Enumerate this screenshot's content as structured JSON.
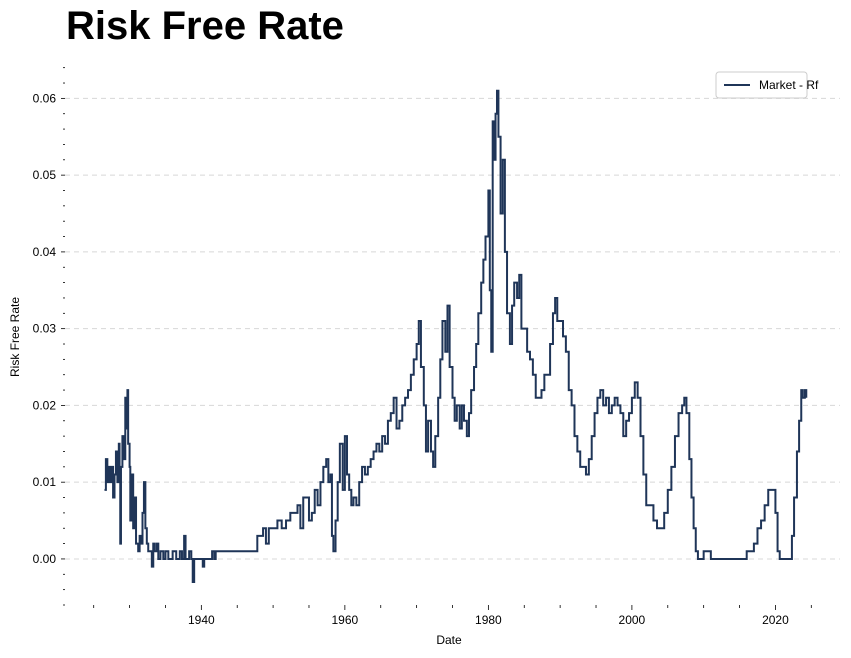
{
  "chart_data": {
    "type": "line",
    "title": "Risk Free Rate",
    "xlabel": "Date",
    "ylabel": "Risk Free Rate",
    "xlim": [
      1921,
      2029
    ],
    "ylim": [
      -0.006,
      0.065
    ],
    "x_ticks": [
      1940,
      1960,
      1980,
      2000,
      2020
    ],
    "y_ticks": [
      0.0,
      0.01,
      0.02,
      0.03,
      0.04,
      0.05,
      0.06
    ],
    "y_tick_labels": [
      "0.00",
      "0.01",
      "0.02",
      "0.03",
      "0.04",
      "0.05",
      "0.06"
    ],
    "grid": "horizontal dashed",
    "legend_position": "top-right",
    "series": [
      {
        "name": "Market - Rf",
        "color": "#1f3558",
        "points": [
          [
            1926.5,
            0.009
          ],
          [
            1926.7,
            0.013
          ],
          [
            1926.9,
            0.01
          ],
          [
            1927.1,
            0.012
          ],
          [
            1927.3,
            0.01
          ],
          [
            1927.5,
            0.012
          ],
          [
            1927.7,
            0.008
          ],
          [
            1927.9,
            0.011
          ],
          [
            1928.1,
            0.014
          ],
          [
            1928.3,
            0.01
          ],
          [
            1928.5,
            0.015
          ],
          [
            1928.6,
            0.012
          ],
          [
            1928.7,
            0.002
          ],
          [
            1928.8,
            0.012
          ],
          [
            1929.0,
            0.016
          ],
          [
            1929.2,
            0.013
          ],
          [
            1929.4,
            0.021
          ],
          [
            1929.5,
            0.017
          ],
          [
            1929.7,
            0.022
          ],
          [
            1929.8,
            0.015
          ],
          [
            1930.0,
            0.012
          ],
          [
            1930.1,
            0.005
          ],
          [
            1930.3,
            0.011
          ],
          [
            1930.5,
            0.004
          ],
          [
            1930.7,
            0.008
          ],
          [
            1930.9,
            0.002
          ],
          [
            1931.2,
            0.001
          ],
          [
            1931.4,
            0.003
          ],
          [
            1931.6,
            0.002
          ],
          [
            1931.8,
            0.006
          ],
          [
            1932.0,
            0.01
          ],
          [
            1932.2,
            0.004
          ],
          [
            1932.4,
            0.002
          ],
          [
            1932.6,
            0.001
          ],
          [
            1932.9,
            0.001
          ],
          [
            1933.1,
            -0.001
          ],
          [
            1933.3,
            0.002
          ],
          [
            1933.5,
            0.001
          ],
          [
            1933.8,
            0.002
          ],
          [
            1934.0,
            0.0
          ],
          [
            1934.3,
            0.001
          ],
          [
            1934.7,
            0.0
          ],
          [
            1935.0,
            0.001
          ],
          [
            1935.4,
            0.0
          ],
          [
            1936.0,
            0.001
          ],
          [
            1936.5,
            0.0
          ],
          [
            1937.0,
            0.001
          ],
          [
            1937.3,
            0.0
          ],
          [
            1937.6,
            0.003
          ],
          [
            1937.8,
            0.0
          ],
          [
            1938.3,
            0.001
          ],
          [
            1938.6,
            0.0
          ],
          [
            1938.8,
            -0.003
          ],
          [
            1939.0,
            0.0
          ],
          [
            1939.5,
            0.0
          ],
          [
            1940.0,
            0.0
          ],
          [
            1940.2,
            -0.001
          ],
          [
            1940.4,
            0.0
          ],
          [
            1941.0,
            0.0
          ],
          [
            1941.5,
            0.001
          ],
          [
            1941.8,
            0.0
          ],
          [
            1942.0,
            0.001
          ],
          [
            1944.0,
            0.001
          ],
          [
            1946.0,
            0.001
          ],
          [
            1947.5,
            0.001
          ],
          [
            1947.8,
            0.003
          ],
          [
            1948.2,
            0.003
          ],
          [
            1948.6,
            0.004
          ],
          [
            1949.0,
            0.002
          ],
          [
            1949.4,
            0.004
          ],
          [
            1950.0,
            0.004
          ],
          [
            1950.6,
            0.005
          ],
          [
            1951.2,
            0.004
          ],
          [
            1951.8,
            0.005
          ],
          [
            1952.4,
            0.006
          ],
          [
            1953.0,
            0.006
          ],
          [
            1953.4,
            0.007
          ],
          [
            1953.8,
            0.004
          ],
          [
            1954.2,
            0.008
          ],
          [
            1954.6,
            0.008
          ],
          [
            1955.0,
            0.005
          ],
          [
            1955.4,
            0.006
          ],
          [
            1955.8,
            0.009
          ],
          [
            1956.2,
            0.007
          ],
          [
            1956.6,
            0.01
          ],
          [
            1957.0,
            0.012
          ],
          [
            1957.4,
            0.013
          ],
          [
            1957.7,
            0.01
          ],
          [
            1958.0,
            0.011
          ],
          [
            1958.2,
            0.003
          ],
          [
            1958.4,
            0.001
          ],
          [
            1958.7,
            0.005
          ],
          [
            1959.0,
            0.01
          ],
          [
            1959.3,
            0.015
          ],
          [
            1959.7,
            0.009
          ],
          [
            1960.0,
            0.016
          ],
          [
            1960.3,
            0.011
          ],
          [
            1960.6,
            0.009
          ],
          [
            1960.9,
            0.007
          ],
          [
            1961.2,
            0.008
          ],
          [
            1961.6,
            0.007
          ],
          [
            1962.0,
            0.01
          ],
          [
            1962.4,
            0.012
          ],
          [
            1962.8,
            0.011
          ],
          [
            1963.2,
            0.012
          ],
          [
            1963.6,
            0.013
          ],
          [
            1964.0,
            0.014
          ],
          [
            1964.4,
            0.015
          ],
          [
            1964.8,
            0.014
          ],
          [
            1965.2,
            0.016
          ],
          [
            1965.6,
            0.015
          ],
          [
            1966.0,
            0.018
          ],
          [
            1966.4,
            0.019
          ],
          [
            1966.8,
            0.021
          ],
          [
            1967.2,
            0.017
          ],
          [
            1967.6,
            0.018
          ],
          [
            1968.0,
            0.02
          ],
          [
            1968.4,
            0.021
          ],
          [
            1968.8,
            0.022
          ],
          [
            1969.2,
            0.024
          ],
          [
            1969.6,
            0.026
          ],
          [
            1970.0,
            0.028
          ],
          [
            1970.3,
            0.031
          ],
          [
            1970.6,
            0.025
          ],
          [
            1971.0,
            0.02
          ],
          [
            1971.3,
            0.014
          ],
          [
            1971.6,
            0.018
          ],
          [
            1972.0,
            0.014
          ],
          [
            1972.3,
            0.012
          ],
          [
            1972.6,
            0.016
          ],
          [
            1973.0,
            0.021
          ],
          [
            1973.3,
            0.026
          ],
          [
            1973.6,
            0.031
          ],
          [
            1974.0,
            0.027
          ],
          [
            1974.3,
            0.033
          ],
          [
            1974.6,
            0.025
          ],
          [
            1975.0,
            0.021
          ],
          [
            1975.3,
            0.018
          ],
          [
            1975.6,
            0.02
          ],
          [
            1976.0,
            0.017
          ],
          [
            1976.3,
            0.02
          ],
          [
            1976.6,
            0.018
          ],
          [
            1977.0,
            0.016
          ],
          [
            1977.3,
            0.019
          ],
          [
            1977.6,
            0.022
          ],
          [
            1978.0,
            0.025
          ],
          [
            1978.3,
            0.028
          ],
          [
            1978.6,
            0.032
          ],
          [
            1979.0,
            0.036
          ],
          [
            1979.3,
            0.039
          ],
          [
            1979.6,
            0.042
          ],
          [
            1980.0,
            0.048
          ],
          [
            1980.2,
            0.035
          ],
          [
            1980.4,
            0.027
          ],
          [
            1980.6,
            0.057
          ],
          [
            1980.8,
            0.052
          ],
          [
            1981.0,
            0.058
          ],
          [
            1981.2,
            0.061
          ],
          [
            1981.4,
            0.055
          ],
          [
            1981.7,
            0.045
          ],
          [
            1982.0,
            0.052
          ],
          [
            1982.3,
            0.04
          ],
          [
            1982.6,
            0.032
          ],
          [
            1983.0,
            0.028
          ],
          [
            1983.3,
            0.033
          ],
          [
            1983.6,
            0.036
          ],
          [
            1984.0,
            0.034
          ],
          [
            1984.3,
            0.037
          ],
          [
            1984.6,
            0.03
          ],
          [
            1985.0,
            0.03
          ],
          [
            1985.4,
            0.027
          ],
          [
            1985.8,
            0.026
          ],
          [
            1986.2,
            0.024
          ],
          [
            1986.6,
            0.021
          ],
          [
            1987.0,
            0.021
          ],
          [
            1987.4,
            0.022
          ],
          [
            1987.8,
            0.024
          ],
          [
            1988.2,
            0.024
          ],
          [
            1988.6,
            0.028
          ],
          [
            1989.0,
            0.032
          ],
          [
            1989.3,
            0.034
          ],
          [
            1989.6,
            0.031
          ],
          [
            1990.0,
            0.031
          ],
          [
            1990.4,
            0.029
          ],
          [
            1990.8,
            0.027
          ],
          [
            1991.2,
            0.022
          ],
          [
            1991.6,
            0.02
          ],
          [
            1992.0,
            0.016
          ],
          [
            1992.4,
            0.014
          ],
          [
            1992.8,
            0.012
          ],
          [
            1993.2,
            0.012
          ],
          [
            1993.6,
            0.011
          ],
          [
            1994.0,
            0.013
          ],
          [
            1994.4,
            0.016
          ],
          [
            1994.8,
            0.019
          ],
          [
            1995.2,
            0.021
          ],
          [
            1995.6,
            0.022
          ],
          [
            1996.0,
            0.02
          ],
          [
            1996.4,
            0.021
          ],
          [
            1996.8,
            0.019
          ],
          [
            1997.2,
            0.02
          ],
          [
            1997.6,
            0.021
          ],
          [
            1998.0,
            0.02
          ],
          [
            1998.4,
            0.019
          ],
          [
            1998.8,
            0.016
          ],
          [
            1999.2,
            0.018
          ],
          [
            1999.6,
            0.019
          ],
          [
            2000.0,
            0.021
          ],
          [
            2000.4,
            0.023
          ],
          [
            2000.8,
            0.021
          ],
          [
            2001.2,
            0.016
          ],
          [
            2001.6,
            0.011
          ],
          [
            2002.0,
            0.007
          ],
          [
            2002.5,
            0.007
          ],
          [
            2003.0,
            0.005
          ],
          [
            2003.5,
            0.004
          ],
          [
            2004.0,
            0.004
          ],
          [
            2004.5,
            0.006
          ],
          [
            2005.0,
            0.009
          ],
          [
            2005.5,
            0.012
          ],
          [
            2006.0,
            0.016
          ],
          [
            2006.5,
            0.019
          ],
          [
            2007.0,
            0.02
          ],
          [
            2007.3,
            0.021
          ],
          [
            2007.6,
            0.019
          ],
          [
            2008.0,
            0.013
          ],
          [
            2008.3,
            0.008
          ],
          [
            2008.6,
            0.004
          ],
          [
            2008.9,
            0.001
          ],
          [
            2009.2,
            0.0
          ],
          [
            2010.0,
            0.001
          ],
          [
            2011.0,
            0.0
          ],
          [
            2012.0,
            0.0
          ],
          [
            2013.0,
            0.0
          ],
          [
            2014.0,
            0.0
          ],
          [
            2015.0,
            0.0
          ],
          [
            2016.0,
            0.001
          ],
          [
            2016.5,
            0.001
          ],
          [
            2017.0,
            0.002
          ],
          [
            2017.5,
            0.004
          ],
          [
            2018.0,
            0.005
          ],
          [
            2018.5,
            0.007
          ],
          [
            2019.0,
            0.009
          ],
          [
            2019.5,
            0.009
          ],
          [
            2020.0,
            0.006
          ],
          [
            2020.3,
            0.001
          ],
          [
            2020.6,
            0.0
          ],
          [
            2021.0,
            0.0
          ],
          [
            2021.5,
            0.0
          ],
          [
            2022.0,
            0.0
          ],
          [
            2022.3,
            0.003
          ],
          [
            2022.6,
            0.008
          ],
          [
            2023.0,
            0.014
          ],
          [
            2023.3,
            0.018
          ],
          [
            2023.6,
            0.022
          ],
          [
            2023.8,
            0.021
          ],
          [
            2024.1,
            0.022
          ],
          [
            2024.3,
            0.021
          ]
        ]
      }
    ]
  }
}
